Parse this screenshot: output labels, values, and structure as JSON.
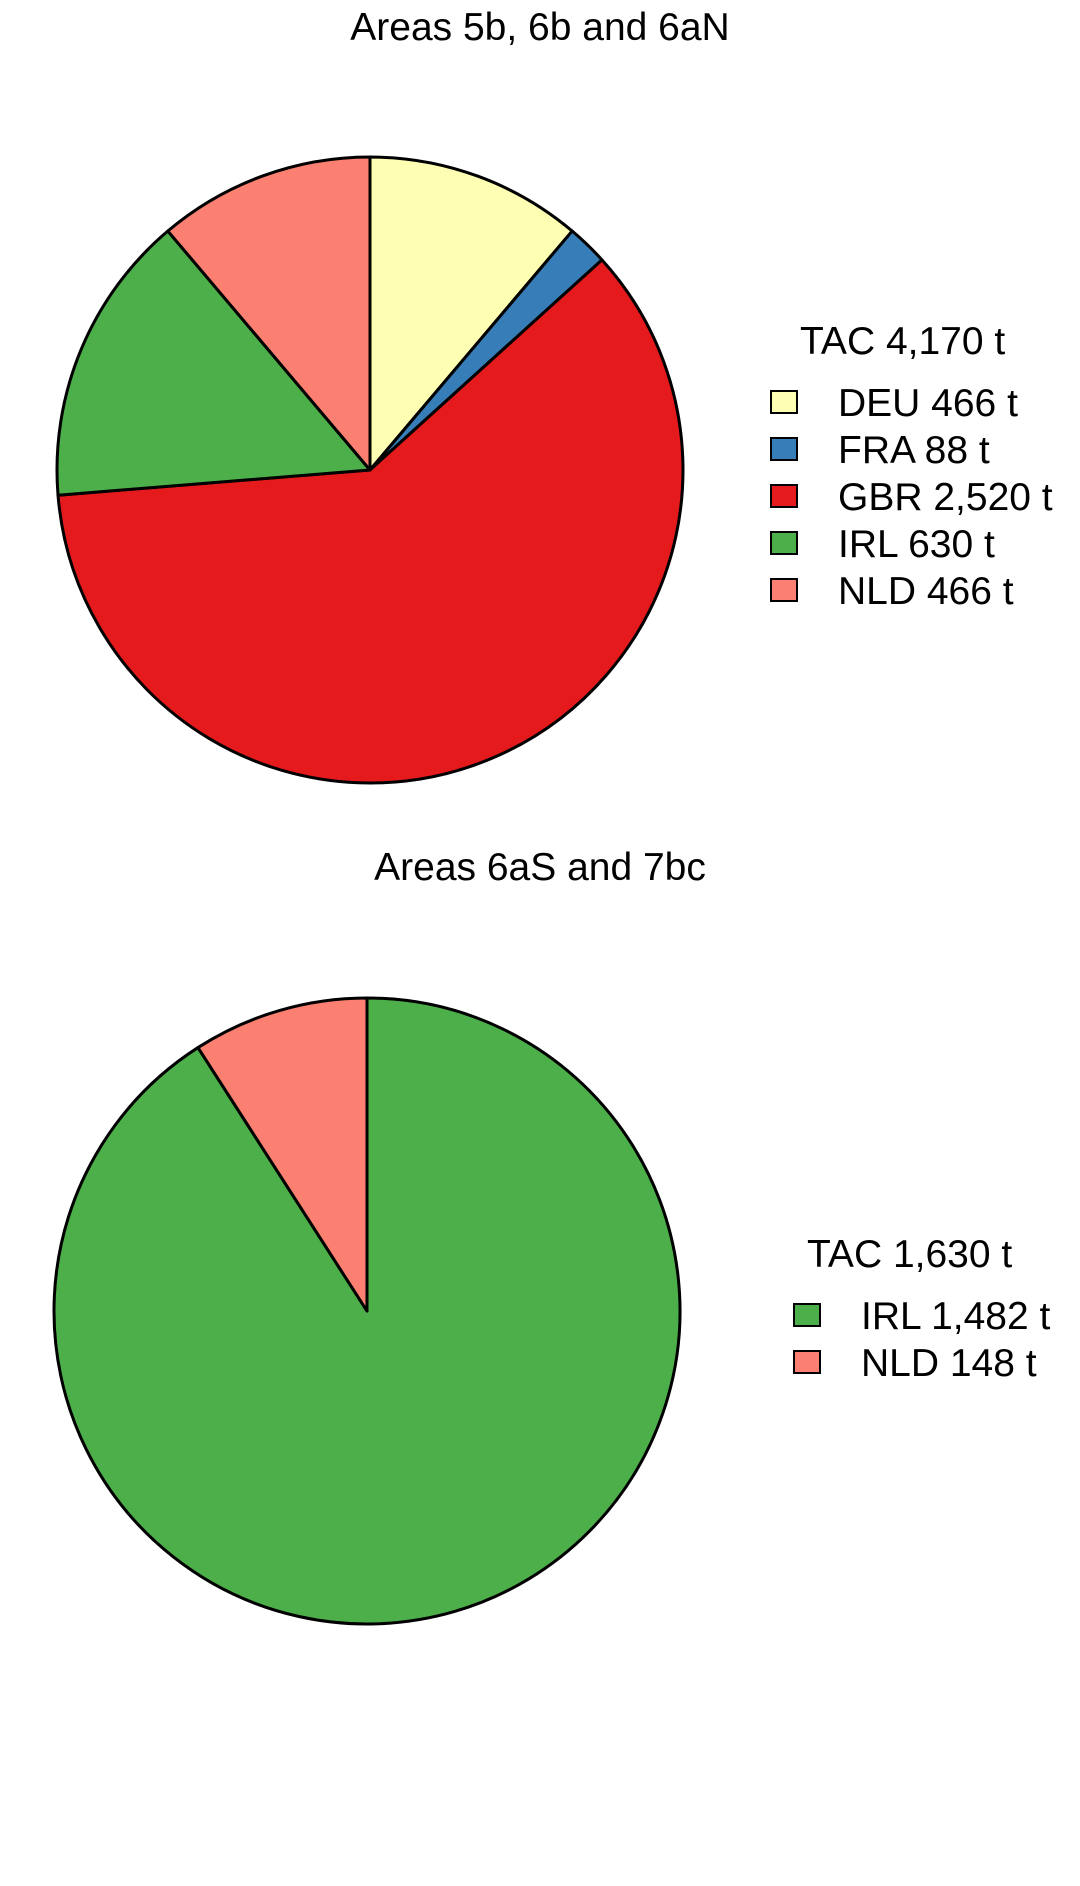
{
  "chart_data": [
    {
      "type": "pie",
      "title": "Areas 5b, 6b and 6aN",
      "legend_title": "TAC 4,170 t",
      "legend_position": "right",
      "start": "12 o'clock",
      "direction": "clockwise",
      "slices": [
        {
          "name": "DEU",
          "value": 466,
          "label": "DEU 466 t",
          "color": "#FFFFB3"
        },
        {
          "name": "FRA",
          "value": 88,
          "label": "FRA 88 t",
          "color": "#377EB8"
        },
        {
          "name": "GBR",
          "value": 2520,
          "label": "GBR 2,520 t",
          "color": "#E41A1C"
        },
        {
          "name": "IRL",
          "value": 630,
          "label": "IRL 630 t",
          "color": "#4DAF4A"
        },
        {
          "name": "NLD",
          "value": 466,
          "label": "NLD 466 t",
          "color": "#FB8072"
        }
      ]
    },
    {
      "type": "pie",
      "title": "Areas 6aS and 7bc",
      "legend_title": "TAC 1,630 t",
      "legend_position": "right",
      "start": "12 o'clock",
      "direction": "clockwise",
      "slices": [
        {
          "name": "IRL",
          "value": 1482,
          "label": "IRL 1,482 t",
          "color": "#4DAF4A"
        },
        {
          "name": "NLD",
          "value": 148,
          "label": "NLD 148 t",
          "color": "#FB8072"
        }
      ]
    }
  ]
}
